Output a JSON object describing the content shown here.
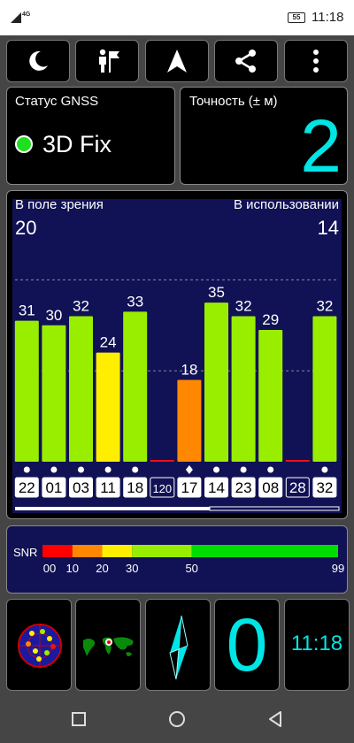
{
  "status_bar": {
    "network": "4G",
    "battery": "55",
    "time": "11:18"
  },
  "toolbar": {
    "buttons": [
      {
        "icon": "moon-icon"
      },
      {
        "icon": "person-flag-icon"
      },
      {
        "icon": "navigation-arrow-icon"
      },
      {
        "icon": "share-icon"
      },
      {
        "icon": "more-vert-icon"
      }
    ]
  },
  "gnss_status": {
    "label": "Статус GNSS",
    "value": "3D Fix",
    "color": "#1ee01e"
  },
  "accuracy": {
    "label": "Точность (± м)",
    "value": "2"
  },
  "satellites": {
    "in_view_label": "В поле зрения",
    "in_view": "20",
    "in_use_label": "В использовании",
    "in_use": "14"
  },
  "chart_data": {
    "type": "bar",
    "categories": [
      "22",
      "01",
      "03",
      "11",
      "18",
      "120",
      "17",
      "14",
      "23",
      "08",
      "28",
      "32"
    ],
    "values": [
      31,
      30,
      32,
      24,
      33,
      0,
      18,
      35,
      32,
      29,
      0,
      32
    ],
    "value_labels": [
      "31",
      "30",
      "32",
      "24",
      "33",
      "",
      "18",
      "35",
      "32",
      "29",
      "",
      "32"
    ],
    "markers": [
      "dot",
      "dot",
      "dot",
      "dot",
      "dot",
      "",
      "diamond",
      "dot",
      "dot",
      "dot",
      "",
      "dot"
    ],
    "label_styles": [
      "box",
      "box",
      "box",
      "box",
      "box",
      "outline",
      "box",
      "box",
      "box",
      "box",
      "outline",
      "box"
    ],
    "ylim": [
      0,
      50
    ],
    "gridlines": [
      20,
      40
    ],
    "colors": {
      "green": "#99ee00",
      "yellow": "#ffee00",
      "orange": "#ff8800",
      "red": "#ee1111"
    }
  },
  "snr": {
    "label": "SNR",
    "ticks": [
      "00",
      "10",
      "20",
      "30",
      "50",
      "99"
    ],
    "segment_colors": [
      "#ff0000",
      "#ff8800",
      "#ffee00",
      "#99ee00",
      "#00dd00"
    ]
  },
  "bottom": {
    "satellite_count": "0",
    "clock": "11:18",
    "tiles": [
      {
        "icon": "radar-sky-icon"
      },
      {
        "icon": "world-map-icon"
      },
      {
        "icon": "compass-icon"
      }
    ]
  },
  "nav": {
    "icons": [
      "recents-square-icon",
      "home-circle-icon",
      "back-triangle-icon"
    ]
  }
}
